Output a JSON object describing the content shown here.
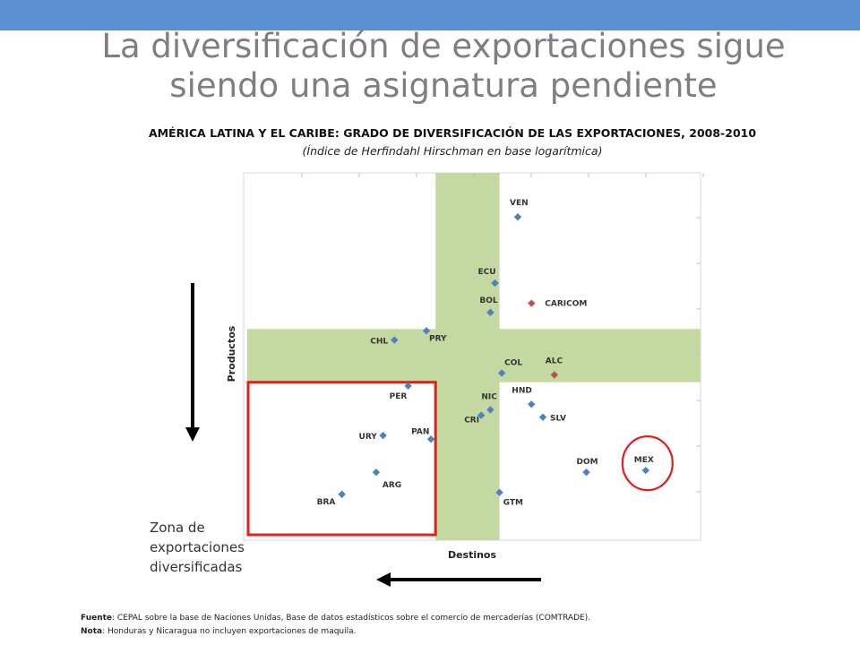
{
  "slide": {
    "title_line1": "La diversificación de exportaciones sigue",
    "title_line2": "siendo una asignatura pendiente",
    "zone_label_lines": [
      "Zona de",
      "exportaciones",
      "diversificadas"
    ],
    "footer": {
      "fuente_label": "Fuente",
      "fuente_text": ": CEPAL sobre la base de Naciones Unidas, Base de datos estadísticos sobre el comercio de mercaderías (COMTRADE).",
      "nota_label": "Nota",
      "nota_text": ": Honduras y Nicaragua no incluyen exportaciones de maquila."
    },
    "colors": {
      "topbar": "#5b8fd0",
      "band": "#c4d9a2",
      "point": "#4f81bd",
      "highlight_point": "#c0504d",
      "frame": "#e0211b"
    }
  },
  "chart_data": {
    "type": "scatter",
    "title": "AMÉRICA LATINA Y EL CARIBE: GRADO DE DIVERSIFICACIÓN DE LAS EXPORTACIONES, 2008-2010",
    "subtitle": "(Índice de Herfindahl Hirschman en base logarítmica)",
    "xlabel": "Destinos",
    "ylabel": "Productos",
    "xlim": [
      0,
      10
    ],
    "ylim": [
      0,
      10
    ],
    "grid": false,
    "tick_marks_only": true,
    "points": [
      {
        "label": "VEN",
        "x": 6.0,
        "y": 8.8,
        "color": "#4f81bd"
      },
      {
        "label": "ECU",
        "x": 5.5,
        "y": 7.0,
        "color": "#4f81bd"
      },
      {
        "label": "BOL",
        "x": 5.4,
        "y": 6.2,
        "color": "#4f81bd"
      },
      {
        "label": "CARICOM",
        "x": 6.3,
        "y": 6.45,
        "color": "#c0504d"
      },
      {
        "label": "PRY",
        "x": 4.0,
        "y": 5.7,
        "color": "#4f81bd"
      },
      {
        "label": "CHL",
        "x": 3.3,
        "y": 5.45,
        "color": "#4f81bd"
      },
      {
        "label": "COL",
        "x": 5.65,
        "y": 4.55,
        "color": "#4f81bd"
      },
      {
        "label": "ALC",
        "x": 6.8,
        "y": 4.5,
        "color": "#c0504d"
      },
      {
        "label": "PER",
        "x": 3.6,
        "y": 4.2,
        "color": "#4f81bd"
      },
      {
        "label": "HND",
        "x": 6.3,
        "y": 3.7,
        "color": "#4f81bd"
      },
      {
        "label": "NIC",
        "x": 5.4,
        "y": 3.55,
        "color": "#4f81bd"
      },
      {
        "label": "CRI",
        "x": 5.2,
        "y": 3.4,
        "color": "#4f81bd"
      },
      {
        "label": "SLV",
        "x": 6.55,
        "y": 3.35,
        "color": "#4f81bd"
      },
      {
        "label": "URY",
        "x": 3.05,
        "y": 2.85,
        "color": "#4f81bd"
      },
      {
        "label": "PAN",
        "x": 4.1,
        "y": 2.75,
        "color": "#4f81bd"
      },
      {
        "label": "DOM",
        "x": 7.5,
        "y": 1.85,
        "color": "#4f81bd"
      },
      {
        "label": "MEX",
        "x": 8.8,
        "y": 1.9,
        "color": "#4f81bd"
      },
      {
        "label": "ARG",
        "x": 2.9,
        "y": 1.85,
        "color": "#4f81bd"
      },
      {
        "label": "GTM",
        "x": 5.6,
        "y": 1.3,
        "color": "#4f81bd"
      },
      {
        "label": "BRA",
        "x": 2.15,
        "y": 1.25,
        "color": "#4f81bd"
      }
    ],
    "bands": {
      "vertical_x": [
        4.2,
        5.6
      ],
      "horizontal_y": [
        4.3,
        5.75
      ]
    },
    "diversified_zone": {
      "x": [
        0,
        4.2
      ],
      "y": [
        0,
        4.3
      ]
    },
    "highlight_circle": "MEX"
  }
}
